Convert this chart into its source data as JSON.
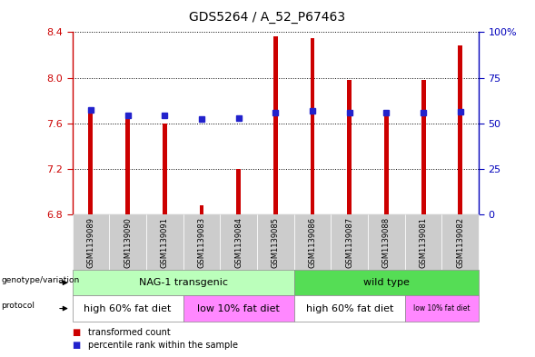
{
  "title": "GDS5264 / A_52_P67463",
  "samples": [
    "GSM1139089",
    "GSM1139090",
    "GSM1139091",
    "GSM1139083",
    "GSM1139084",
    "GSM1139085",
    "GSM1139086",
    "GSM1139087",
    "GSM1139088",
    "GSM1139081",
    "GSM1139082"
  ],
  "bar_values": [
    7.72,
    7.65,
    7.6,
    6.88,
    7.2,
    8.36,
    8.35,
    7.98,
    7.7,
    7.98,
    8.28
  ],
  "dot_values": [
    7.72,
    7.67,
    7.67,
    7.64,
    7.65,
    7.695,
    7.71,
    7.695,
    7.695,
    7.695,
    7.7
  ],
  "ylim_left": [
    6.8,
    8.4
  ],
  "ylim_right": [
    0,
    100
  ],
  "yticks_left": [
    6.8,
    7.2,
    7.6,
    8.0,
    8.4
  ],
  "yticks_right": [
    0,
    25,
    50,
    75,
    100
  ],
  "bar_color": "#cc0000",
  "dot_color": "#2222cc",
  "bar_bottom": 6.8,
  "bar_width": 0.12,
  "genotype_groups": [
    {
      "label": "NAG-1 transgenic",
      "start": 0,
      "end": 6,
      "color": "#bbffbb"
    },
    {
      "label": "wild type",
      "start": 6,
      "end": 11,
      "color": "#55dd55"
    }
  ],
  "protocol_groups": [
    {
      "label": "high 60% fat diet",
      "start": 0,
      "end": 3,
      "color": "#ffffff"
    },
    {
      "label": "low 10% fat diet",
      "start": 3,
      "end": 6,
      "color": "#ff88ff"
    },
    {
      "label": "high 60% fat diet",
      "start": 6,
      "end": 9,
      "color": "#ffffff"
    },
    {
      "label": "low 10% fat diet",
      "start": 9,
      "end": 11,
      "color": "#ff88ff"
    }
  ],
  "legend_items": [
    {
      "label": "transformed count",
      "color": "#cc0000"
    },
    {
      "label": "percentile rank within the sample",
      "color": "#2222cc"
    }
  ],
  "left_label_color": "#cc0000",
  "right_label_color": "#0000bb",
  "tick_cell_color": "#cccccc"
}
